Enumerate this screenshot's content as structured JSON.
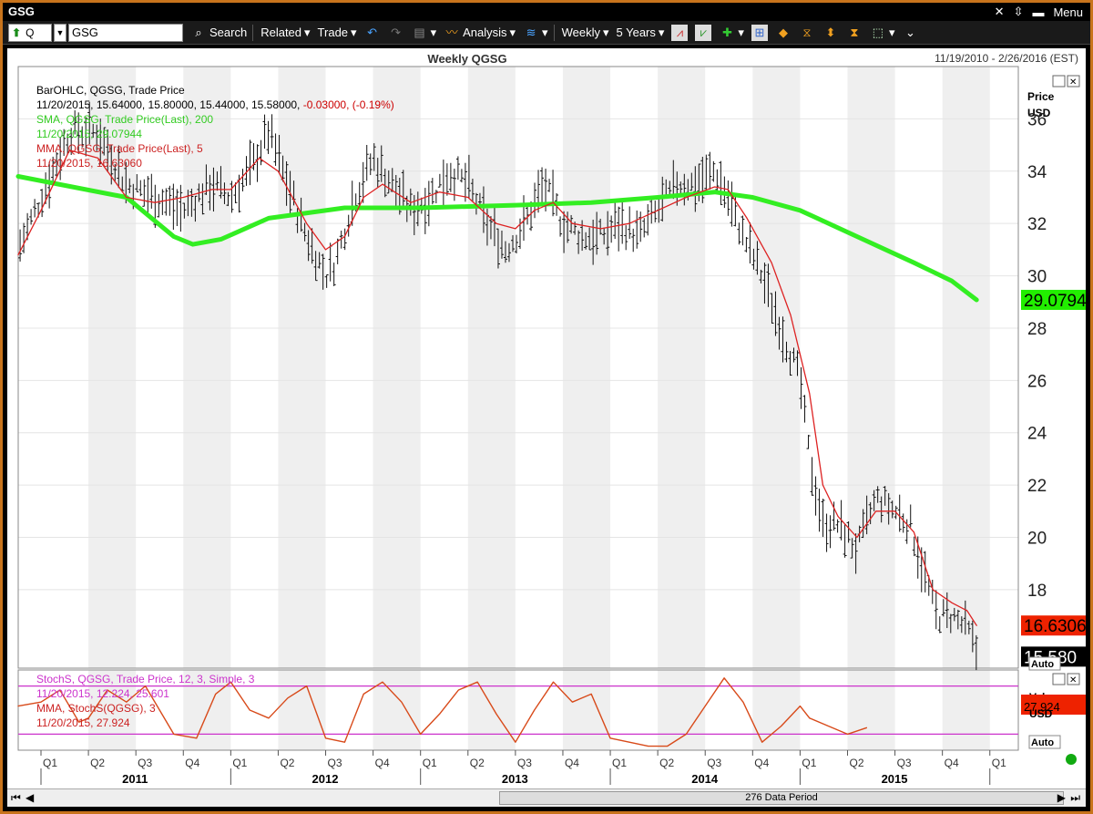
{
  "window": {
    "title": "GSG",
    "menu_label": "Menu"
  },
  "toolbar": {
    "symbol_type": "Q",
    "symbol_value": "GSG",
    "search": "Search",
    "related": "Related",
    "trade": "Trade",
    "analysis": "Analysis",
    "periodicity": "Weekly",
    "range": "5 Years"
  },
  "header": {
    "date_range": "11/19/2010 - 2/26/2016 (EST)"
  },
  "scroll": {
    "label": "276 Data Period"
  },
  "colors": {
    "sma": "#33ee22",
    "mma": "#dd2222",
    "stoch": "#cc33cc",
    "stoch_line": "#d84a1a",
    "badge_mma": "#ee2200",
    "badge_sma": "#22ee00"
  },
  "price_axis": {
    "label_top": "Price",
    "label_unit": "USD",
    "auto_label": "Auto"
  },
  "stoch_axis": {
    "label_top": "Value",
    "label_unit": "USD",
    "auto_label": "Auto"
  },
  "badges": {
    "sma": "29.0794",
    "mma": "16.6306",
    "last": "15.580",
    "stoch": "27.924"
  },
  "legend_price": [
    {
      "text": "BarOHLC, QGSG, Trade Price",
      "color": "#000000"
    },
    {
      "text": "11/20/2015, 15.64000, 15.80000, 15.44000, 15.58000, ",
      "color": "#000000",
      "suffix": "-0.03000, (-0.19%)",
      "suffix_color": "#cc0000"
    },
    {
      "text": "SMA, QGSG, Trade Price(Last), 200",
      "color": "#33cc22"
    },
    {
      "text": "11/20/2015, 29.07944",
      "color": "#33cc22"
    },
    {
      "text": "MMA, QGSG, Trade Price(Last), 5",
      "color": "#cc2222"
    },
    {
      "text": "11/20/2015, 16.63060",
      "color": "#cc2222"
    }
  ],
  "legend_stoch": [
    {
      "text": "StochS, QGSG, Trade Price, 12, 3, Simple, 3",
      "color": "#cc33cc"
    },
    {
      "text": "11/20/2015, 12.224, 25.601",
      "color": "#cc33cc"
    },
    {
      "text": "MMA, StochS(QGSG), 3",
      "color": "#cc2222"
    },
    {
      "text": "11/20/2015, 27.924",
      "color": "#cc2222"
    }
  ],
  "chart_data": [
    {
      "type": "ohlc",
      "title": "Weekly QGSG",
      "ylabel": "Price USD",
      "ylim": [
        15,
        38
      ],
      "yticks": [
        "18",
        "20",
        "22",
        "24",
        "26",
        "28",
        "30",
        "32",
        "34",
        "36"
      ],
      "xaxis": {
        "quarters": [
          "Q1",
          "Q2",
          "Q3",
          "Q4",
          "Q1",
          "Q2",
          "Q3",
          "Q4",
          "Q1",
          "Q2",
          "Q3",
          "Q4",
          "Q1",
          "Q2",
          "Q3",
          "Q4",
          "Q1",
          "Q2",
          "Q3",
          "Q4",
          "Q1"
        ],
        "years": [
          "2011",
          "2012",
          "2013",
          "2014",
          "2015"
        ]
      },
      "series": [
        {
          "name": "BarOHLC",
          "key_points": [
            [
              2010.88,
              31.0
            ],
            [
              2011.0,
              33.0
            ],
            [
              2011.15,
              35.5
            ],
            [
              2011.3,
              35.5
            ],
            [
              2011.45,
              33.5
            ],
            [
              2011.6,
              33.0
            ],
            [
              2011.75,
              32.5
            ],
            [
              2011.9,
              33.5
            ],
            [
              2012.0,
              33.0
            ],
            [
              2012.1,
              34.0
            ],
            [
              2012.2,
              35.5
            ],
            [
              2012.3,
              33.5
            ],
            [
              2012.4,
              31.5
            ],
            [
              2012.5,
              30.0
            ],
            [
              2012.55,
              30.5
            ],
            [
              2012.65,
              33.0
            ],
            [
              2012.75,
              34.5
            ],
            [
              2012.85,
              33.5
            ],
            [
              2012.95,
              32.5
            ],
            [
              2013.05,
              33.0
            ],
            [
              2013.15,
              34.0
            ],
            [
              2013.25,
              33.5
            ],
            [
              2013.35,
              32.0
            ],
            [
              2013.45,
              31.0
            ],
            [
              2013.55,
              32.0
            ],
            [
              2013.65,
              33.5
            ],
            [
              2013.75,
              32.0
            ],
            [
              2013.85,
              31.5
            ],
            [
              2013.95,
              31.5
            ],
            [
              2014.05,
              32.0
            ],
            [
              2014.15,
              31.5
            ],
            [
              2014.25,
              32.5
            ],
            [
              2014.35,
              33.5
            ],
            [
              2014.45,
              33.5
            ],
            [
              2014.55,
              34.0
            ],
            [
              2014.62,
              33.0
            ],
            [
              2014.7,
              31.5
            ],
            [
              2014.8,
              30.0
            ],
            [
              2014.9,
              28.0
            ],
            [
              2015.0,
              26.0
            ],
            [
              2015.05,
              23.0
            ],
            [
              2015.12,
              20.5
            ],
            [
              2015.2,
              20.5
            ],
            [
              2015.3,
              19.5
            ],
            [
              2015.4,
              21.5
            ],
            [
              2015.5,
              21.0
            ],
            [
              2015.58,
              20.5
            ],
            [
              2015.66,
              18.5
            ],
            [
              2015.72,
              17.0
            ],
            [
              2015.8,
              17.0
            ],
            [
              2015.88,
              16.5
            ],
            [
              2015.93,
              15.6
            ]
          ]
        },
        {
          "name": "SMA 200",
          "values": [
            [
              2010.88,
              33.8
            ],
            [
              2011.45,
              33.0
            ],
            [
              2011.7,
              31.5
            ],
            [
              2011.8,
              31.2
            ],
            [
              2011.95,
              31.4
            ],
            [
              2012.2,
              32.2
            ],
            [
              2012.6,
              32.6
            ],
            [
              2013.0,
              32.6
            ],
            [
              2013.5,
              32.7
            ],
            [
              2013.9,
              32.8
            ],
            [
              2014.25,
              33.0
            ],
            [
              2014.55,
              33.2
            ],
            [
              2014.75,
              33.0
            ],
            [
              2015.0,
              32.5
            ],
            [
              2015.3,
              31.5
            ],
            [
              2015.6,
              30.5
            ],
            [
              2015.8,
              29.8
            ],
            [
              2015.93,
              29.08
            ]
          ]
        },
        {
          "name": "MMA 5",
          "values": [
            [
              2010.88,
              30.8
            ],
            [
              2011.0,
              32.5
            ],
            [
              2011.15,
              34.8
            ],
            [
              2011.3,
              34.5
            ],
            [
              2011.45,
              33.0
            ],
            [
              2011.6,
              32.8
            ],
            [
              2011.75,
              33.0
            ],
            [
              2011.9,
              33.3
            ],
            [
              2012.0,
              33.3
            ],
            [
              2012.15,
              34.5
            ],
            [
              2012.25,
              34.0
            ],
            [
              2012.4,
              32.0
            ],
            [
              2012.5,
              31.0
            ],
            [
              2012.6,
              31.5
            ],
            [
              2012.7,
              33.0
            ],
            [
              2012.8,
              33.5
            ],
            [
              2012.95,
              32.8
            ],
            [
              2013.1,
              33.2
            ],
            [
              2013.25,
              33.0
            ],
            [
              2013.4,
              32.0
            ],
            [
              2013.5,
              31.8
            ],
            [
              2013.6,
              32.5
            ],
            [
              2013.7,
              32.8
            ],
            [
              2013.8,
              32.0
            ],
            [
              2013.95,
              31.8
            ],
            [
              2014.1,
              32.0
            ],
            [
              2014.25,
              32.5
            ],
            [
              2014.4,
              33.0
            ],
            [
              2014.55,
              33.4
            ],
            [
              2014.62,
              33.3
            ],
            [
              2014.72,
              32.2
            ],
            [
              2014.85,
              30.5
            ],
            [
              2014.95,
              28.5
            ],
            [
              2015.05,
              25.5
            ],
            [
              2015.12,
              22.0
            ],
            [
              2015.2,
              20.8
            ],
            [
              2015.3,
              20.0
            ],
            [
              2015.4,
              21.0
            ],
            [
              2015.5,
              21.0
            ],
            [
              2015.6,
              20.2
            ],
            [
              2015.7,
              18.0
            ],
            [
              2015.8,
              17.5
            ],
            [
              2015.88,
              17.2
            ],
            [
              2015.93,
              16.63
            ]
          ]
        }
      ]
    },
    {
      "type": "line",
      "title": "StochS, QGSG, Trade Price, 12, 3, Simple, 3",
      "ylim": [
        0,
        100
      ],
      "reference_lines": [
        80,
        20
      ],
      "series": [
        {
          "name": "StochS",
          "values": [
            [
              2010.88,
              55
            ],
            [
              2011.0,
              60
            ],
            [
              2011.1,
              75
            ],
            [
              2011.2,
              35
            ],
            [
              2011.25,
              40
            ],
            [
              2011.35,
              75
            ],
            [
              2011.45,
              60
            ],
            [
              2011.55,
              80
            ],
            [
              2011.7,
              20
            ],
            [
              2011.82,
              15
            ],
            [
              2011.92,
              70
            ],
            [
              2012.0,
              85
            ],
            [
              2012.1,
              50
            ],
            [
              2012.2,
              40
            ],
            [
              2012.3,
              65
            ],
            [
              2012.4,
              80
            ],
            [
              2012.5,
              15
            ],
            [
              2012.6,
              10
            ],
            [
              2012.7,
              70
            ],
            [
              2012.8,
              85
            ],
            [
              2012.9,
              60
            ],
            [
              2013.0,
              20
            ],
            [
              2013.1,
              45
            ],
            [
              2013.2,
              75
            ],
            [
              2013.3,
              85
            ],
            [
              2013.4,
              45
            ],
            [
              2013.5,
              10
            ],
            [
              2013.6,
              50
            ],
            [
              2013.7,
              85
            ],
            [
              2013.8,
              60
            ],
            [
              2013.9,
              70
            ],
            [
              2014.0,
              15
            ],
            [
              2014.1,
              10
            ],
            [
              2014.2,
              5
            ],
            [
              2014.3,
              5
            ],
            [
              2014.4,
              20
            ],
            [
              2014.5,
              55
            ],
            [
              2014.6,
              90
            ],
            [
              2014.7,
              60
            ],
            [
              2014.8,
              10
            ],
            [
              2014.9,
              30
            ],
            [
              2015.0,
              55
            ],
            [
              2015.05,
              40
            ],
            [
              2015.15,
              30
            ],
            [
              2015.25,
              20
            ],
            [
              2015.35,
              28
            ]
          ]
        }
      ]
    }
  ]
}
